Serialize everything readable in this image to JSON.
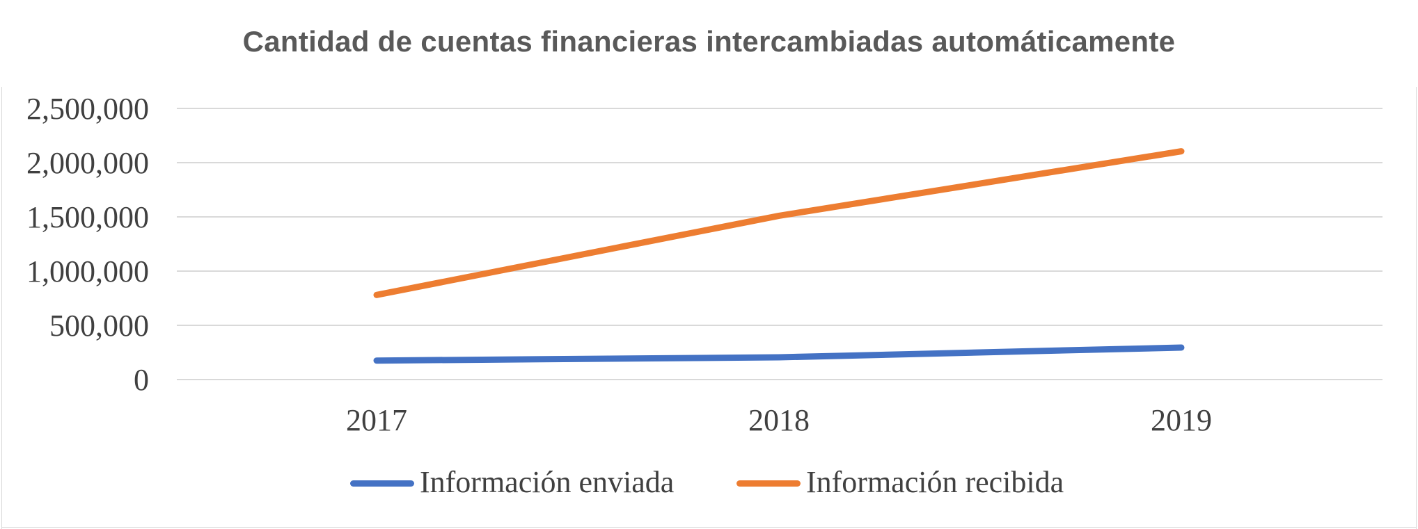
{
  "chart_data": {
    "type": "line",
    "title": "Cantidad de cuentas financieras intercambiadas automáticamente",
    "categories": [
      "2017",
      "2018",
      "2019"
    ],
    "series": [
      {
        "name": "Información enviada",
        "values": [
          175000,
          205000,
          295000
        ],
        "color": "#4472c4"
      },
      {
        "name": "Información recibida",
        "values": [
          780000,
          1510000,
          2105000
        ],
        "color": "#ed7d31"
      }
    ],
    "ylim": [
      0,
      2500000
    ],
    "yticks": [
      0,
      500000,
      1000000,
      1500000,
      2000000,
      2500000
    ],
    "ytick_labels": [
      "0",
      "500,000",
      "1,000,000",
      "1,500,000",
      "2,000,000",
      "2,500,000"
    ],
    "grid": true,
    "legend": "bottom",
    "gridline_color": "#d9d9d9",
    "xlabel": "",
    "ylabel": ""
  }
}
